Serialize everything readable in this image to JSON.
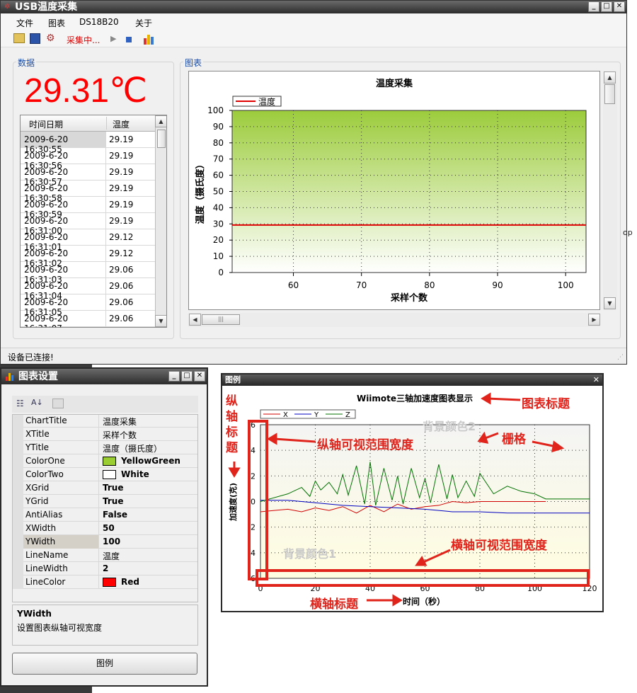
{
  "main_window": {
    "title": "USB温度采集",
    "menu": [
      "文件",
      "图表",
      "DS18B20",
      "关于"
    ],
    "toolbar_status": "采集中...",
    "data_group": "数据",
    "chart_group": "图表",
    "temperature": "29.31℃",
    "status": "设备已连接!",
    "table": {
      "headers": [
        "时间日期",
        "温度"
      ],
      "rows": [
        [
          "2009-6-20 16:30:55",
          "29.19"
        ],
        [
          "2009-6-20 16:30:56",
          "29.19"
        ],
        [
          "2009-6-20 16:30:57",
          "29.19"
        ],
        [
          "2009-6-20 16:30:58",
          "29.19"
        ],
        [
          "2009-6-20 16:30:59",
          "29.19"
        ],
        [
          "2009-6-20 16:31:00",
          "29.19"
        ],
        [
          "2009-6-20 16:31:01",
          "29.12"
        ],
        [
          "2009-6-20 16:31:02",
          "29.12"
        ],
        [
          "2009-6-20 16:31:03",
          "29.06"
        ],
        [
          "2009-6-20 16:31:04",
          "29.06"
        ],
        [
          "2009-6-20 16:31:05",
          "29.06"
        ],
        [
          "2009-6-20 16:31:07",
          "29.06"
        ]
      ]
    }
  },
  "chart_data": [
    {
      "type": "line",
      "title": "温度采集",
      "xlabel": "采样个数",
      "ylabel": "温度（摄氏度）",
      "xlim": [
        51,
        103
      ],
      "ylim": [
        0,
        100
      ],
      "xticks": [
        "60",
        "70",
        "80",
        "90",
        "100"
      ],
      "yticks": [
        "0",
        "10",
        "20",
        "30",
        "40",
        "50",
        "60",
        "70",
        "80",
        "90",
        "100"
      ],
      "legend": "top-left",
      "grid": true,
      "series": [
        {
          "name": "温度",
          "color": "#e00000",
          "x": [
            51,
            103
          ],
          "y": [
            29.3,
            29.3
          ]
        }
      ],
      "background": [
        "#9ccc3c",
        "#ffffff"
      ]
    },
    {
      "type": "line",
      "title": "Wiimote三轴加速度图表显示",
      "xlabel": "时间（秒）",
      "ylabel": "加速度(克)",
      "xlim": [
        0,
        120
      ],
      "ylim": [
        -6,
        6
      ],
      "xticks": [
        "0",
        "20",
        "40",
        "60",
        "80",
        "100",
        "120"
      ],
      "yticks": [
        "-6",
        "-4",
        "-2",
        "0",
        "2",
        "4",
        "6"
      ],
      "legend": "top-left",
      "grid": true,
      "series": [
        {
          "name": "X",
          "color": "#d00000",
          "x": [
            0,
            5,
            10,
            15,
            20,
            25,
            30,
            35,
            40,
            45,
            50,
            55,
            60,
            65,
            70,
            75,
            80,
            85,
            90,
            95,
            100,
            104
          ],
          "y": [
            -0.8,
            -0.7,
            -0.6,
            -0.8,
            -0.5,
            -0.7,
            -0.4,
            -0.9,
            -0.3,
            -0.8,
            -0.2,
            -0.6,
            -0.4,
            -0.3,
            0,
            -0.1,
            0,
            0,
            0,
            0,
            0,
            0
          ]
        },
        {
          "name": "Y",
          "color": "#0000c0",
          "x": [
            0,
            10,
            20,
            30,
            40,
            50,
            60,
            65,
            70,
            80,
            90,
            100,
            104,
            120
          ],
          "y": [
            0.1,
            0.1,
            -0.1,
            -0.3,
            -0.4,
            -0.5,
            -0.6,
            -0.7,
            -0.8,
            -0.8,
            -0.9,
            -0.9,
            -0.9,
            -0.9
          ],
          "note": ""
        },
        {
          "name": "Z",
          "color": "#007000",
          "x": [
            0,
            10,
            15,
            18,
            20,
            22,
            25,
            28,
            30,
            32,
            35,
            38,
            40,
            42,
            45,
            48,
            50,
            52,
            55,
            58,
            60,
            62,
            65,
            68,
            70,
            72,
            75,
            78,
            80,
            85,
            90,
            95,
            100,
            104,
            110,
            120
          ],
          "y": [
            0,
            0.6,
            1.1,
            0.4,
            1.6,
            0.9,
            1.5,
            0.6,
            2.1,
            0.5,
            2.8,
            -0.2,
            3.1,
            -0.3,
            2.6,
            0.1,
            2.0,
            -0.2,
            2.6,
            0.3,
            1.8,
            -0.1,
            2.9,
            0.2,
            2.1,
            0.3,
            1.6,
            0.4,
            2.2,
            0.6,
            1.2,
            0.8,
            0.6,
            0.2,
            0.2,
            0.2
          ]
        }
      ]
    }
  ],
  "annotations": [
    "图表标题",
    "纵轴标题",
    "纵轴可视范围宽度",
    "背景颜色2",
    "栅格",
    "背景颜色1",
    "横轴可视范围宽度",
    "横轴标题"
  ],
  "settings_window": {
    "title": "图表设置",
    "desc_title": "YWidth",
    "desc_text": "设置图表纵轴可视宽度",
    "button": "图例",
    "props": [
      {
        "name": "ChartTitle",
        "value": "温度采集",
        "swatch": ""
      },
      {
        "name": "XTitle",
        "value": "采样个数",
        "swatch": ""
      },
      {
        "name": "YTitle",
        "value": "温度（摄氏度）",
        "swatch": ""
      },
      {
        "name": "ColorOne",
        "value": "YellowGreen",
        "swatch": "#9acd32"
      },
      {
        "name": "ColorTwo",
        "value": "White",
        "swatch": "#ffffff"
      },
      {
        "name": "XGrid",
        "value": "True",
        "swatch": ""
      },
      {
        "name": "YGrid",
        "value": "True",
        "swatch": ""
      },
      {
        "name": "AntiAlias",
        "value": "False",
        "swatch": ""
      },
      {
        "name": "XWidth",
        "value": "50",
        "swatch": ""
      },
      {
        "name": "YWidth",
        "value": "100",
        "swatch": ""
      },
      {
        "name": "LineName",
        "value": "温度",
        "swatch": ""
      },
      {
        "name": "LineWidth",
        "value": "2",
        "swatch": ""
      },
      {
        "name": "LineColor",
        "value": "Red",
        "swatch": "#ff0000"
      }
    ]
  },
  "legend_window": {
    "title": "图例"
  }
}
